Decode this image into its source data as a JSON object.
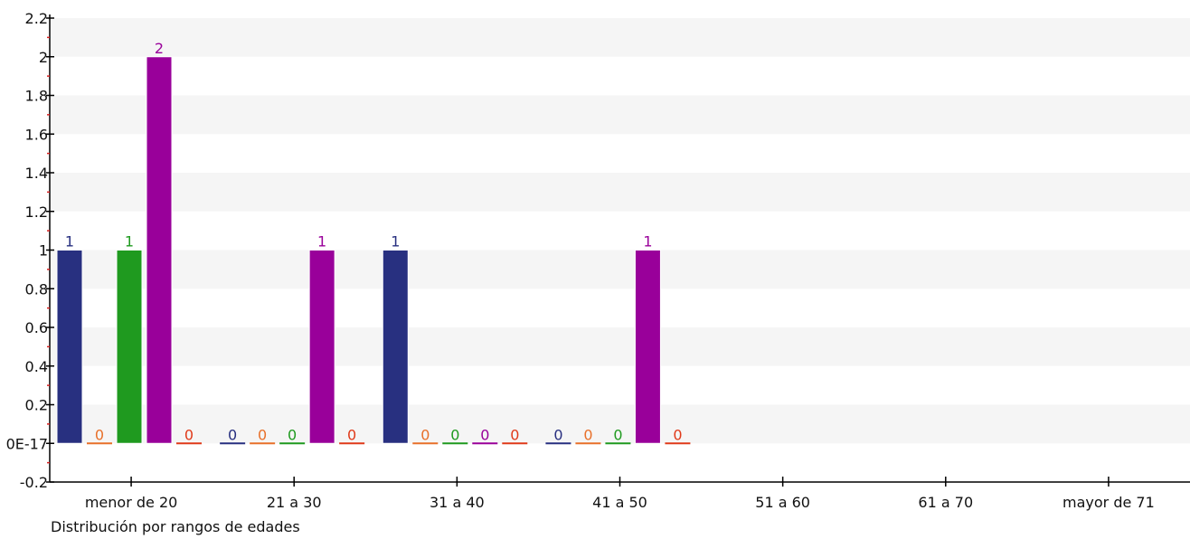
{
  "chart_data": {
    "type": "bar",
    "title": "",
    "xlabel": "Distribución por rangos de edades",
    "ylabel": "",
    "ylim": [
      -0.2,
      2.2
    ],
    "y_ticks": [
      -0.2,
      0,
      0.2,
      0.4,
      0.6,
      0.8,
      1,
      1.2,
      1.4,
      1.6,
      1.8,
      2,
      2.2
    ],
    "y_tick_labels": [
      "-0.2",
      "0E-17",
      "0.2",
      "0.4",
      "0.6",
      "0.8",
      "1",
      "1.2",
      "1.4",
      "1.6",
      "1.8",
      "2",
      "2.2"
    ],
    "grid": "horizontal bands",
    "legend": "none",
    "categories": [
      "menor de 20",
      "21 a 30",
      "31 a 40",
      "41 a 50",
      "51 a 60",
      "61 a 70",
      "mayor de 71"
    ],
    "series": [
      {
        "values": [
          1,
          0,
          1,
          0,
          null,
          null,
          null
        ],
        "color": "#283080"
      },
      {
        "values": [
          0,
          0,
          0,
          0,
          null,
          null,
          null
        ],
        "color": "#e8702a"
      },
      {
        "values": [
          1,
          0,
          0,
          0,
          null,
          null,
          null
        ],
        "color": "#1f9a1f"
      },
      {
        "values": [
          2,
          1,
          0,
          1,
          null,
          null,
          null
        ],
        "color": "#99009a"
      },
      {
        "values": [
          0,
          0,
          0,
          0,
          null,
          null,
          null
        ],
        "color": "#e03a1a"
      }
    ]
  }
}
